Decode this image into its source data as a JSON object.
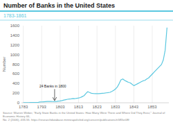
{
  "chart_data": {
    "type": "line",
    "title": "Number of Banks in the United States",
    "subtitle": "1783-1861",
    "ylabel": "Number",
    "source": "Source: Warren Weber, \"Early State Banks in the United States: How Many Were There and Where Did They Exist,\" Journal of Economic History 66,\nNo. 2 (2006), 433-55. https://researchdatabase.minneapolisfed.org/concern/publications/n583xr08f",
    "annotations": [
      {
        "text": "24 Banks in 1800",
        "x": 1800,
        "y": 24
      }
    ],
    "color": "#5bc8e0",
    "x": [
      1783,
      1784,
      1785,
      1786,
      1787,
      1788,
      1789,
      1790,
      1791,
      1792,
      1793,
      1794,
      1795,
      1796,
      1797,
      1798,
      1799,
      1800,
      1801,
      1802,
      1803,
      1804,
      1805,
      1806,
      1807,
      1808,
      1809,
      1810,
      1811,
      1812,
      1813,
      1814,
      1815,
      1816,
      1817,
      1818,
      1819,
      1820,
      1821,
      1822,
      1823,
      1824,
      1825,
      1826,
      1827,
      1828,
      1829,
      1830,
      1831,
      1832,
      1833,
      1834,
      1835,
      1836,
      1837,
      1838,
      1839,
      1840,
      1841,
      1842,
      1843,
      1844,
      1845,
      1846,
      1847,
      1848,
      1849,
      1850,
      1851,
      1852,
      1853,
      1854,
      1855,
      1856,
      1857,
      1858,
      1859,
      1860,
      1861
    ],
    "values": [
      1,
      2,
      3,
      3,
      4,
      4,
      5,
      5,
      7,
      16,
      18,
      21,
      24,
      26,
      28,
      27,
      25,
      24,
      28,
      33,
      38,
      46,
      55,
      64,
      72,
      78,
      80,
      88,
      86,
      92,
      98,
      108,
      128,
      148,
      192,
      230,
      212,
      196,
      192,
      190,
      188,
      188,
      192,
      196,
      200,
      205,
      210,
      216,
      235,
      255,
      285,
      325,
      395,
      475,
      495,
      465,
      445,
      425,
      415,
      385,
      355,
      375,
      395,
      415,
      435,
      455,
      465,
      495,
      515,
      555,
      595,
      635,
      675,
      715,
      755,
      795,
      890,
      1090,
      1560
    ],
    "xlim": [
      1782,
      1862
    ],
    "ylim": [
      0,
      1600
    ],
    "xticks": [
      1783,
      1793,
      1803,
      1813,
      1823,
      1833,
      1843,
      1853
    ],
    "yticks": [
      0,
      200,
      400,
      600,
      800,
      1000,
      1200,
      1400,
      1600
    ],
    "grid": true
  }
}
